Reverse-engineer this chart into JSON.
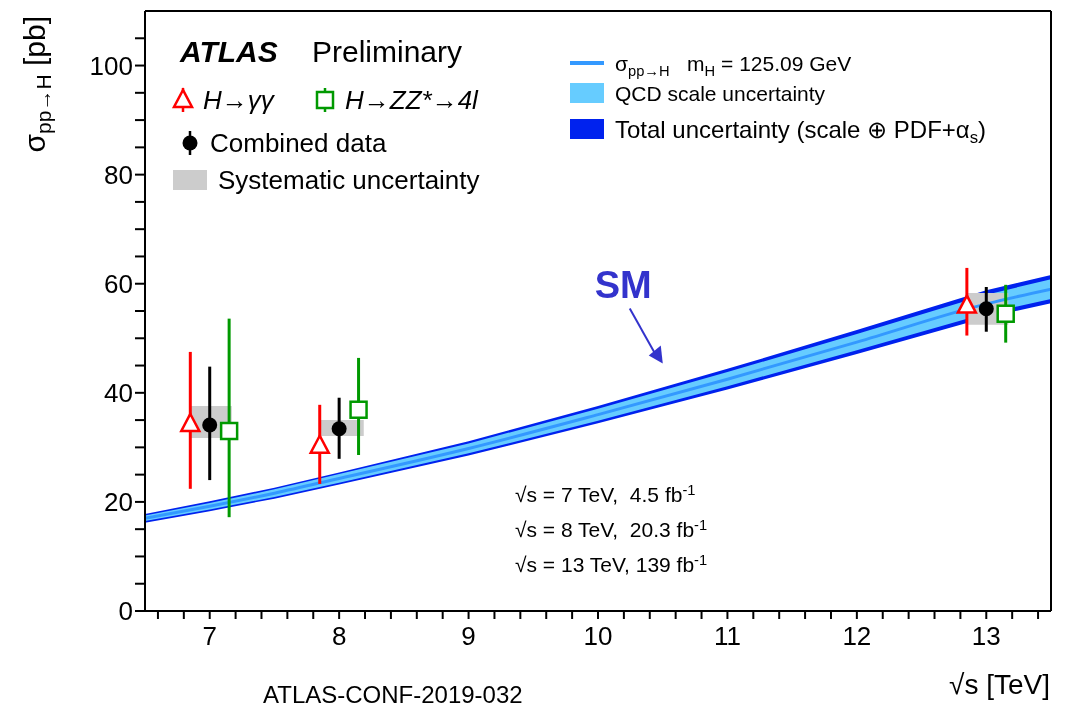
{
  "chart_data": {
    "type": "scatter",
    "xlabel": "√s [TeV]",
    "ylabel": "σ$_{pp→H}$ [pb]",
    "xlim": [
      6.5,
      13.5
    ],
    "ylim": [
      0,
      110
    ],
    "xticks": [
      {
        "value": 6.6,
        "label": null
      },
      {
        "value": 6.8,
        "label": null
      },
      7,
      {
        "value": 7.2,
        "label": null
      },
      {
        "value": 7.4,
        "label": null
      },
      {
        "value": 7.6,
        "label": null
      },
      {
        "value": 7.8,
        "label": null
      },
      8,
      {
        "value": 8.2,
        "label": null
      },
      {
        "value": 8.4,
        "label": null
      },
      {
        "value": 8.6,
        "label": null
      },
      {
        "value": 8.8,
        "label": null
      },
      9,
      {
        "value": 9.2,
        "label": null
      },
      {
        "value": 9.4,
        "label": null
      },
      {
        "value": 9.6,
        "label": null
      },
      {
        "value": 9.8,
        "label": null
      },
      10,
      {
        "value": 10.2,
        "label": null
      },
      {
        "value": 10.4,
        "label": null
      },
      {
        "value": 10.6,
        "label": null
      },
      {
        "value": 10.8,
        "label": null
      },
      11,
      {
        "value": 11.2,
        "label": null
      },
      {
        "value": 11.4,
        "label": null
      },
      {
        "value": 11.6,
        "label": null
      },
      {
        "value": 11.8,
        "label": null
      },
      12,
      {
        "value": 12.2,
        "label": null
      },
      {
        "value": 12.4,
        "label": null
      },
      {
        "value": 12.6,
        "label": null
      },
      {
        "value": 12.8,
        "label": null
      },
      13,
      {
        "value": 13.2,
        "label": null
      },
      {
        "value": 13.4,
        "label": null
      }
    ],
    "yticks": [
      0,
      {
        "value": 5,
        "label": null
      },
      {
        "value": 10,
        "label": null
      },
      {
        "value": 15,
        "label": null
      },
      20,
      {
        "value": 25,
        "label": null
      },
      {
        "value": 30,
        "label": null
      },
      {
        "value": 35,
        "label": null
      },
      40,
      {
        "value": 45,
        "label": null
      },
      {
        "value": 50,
        "label": null
      },
      {
        "value": 55,
        "label": null
      },
      60,
      {
        "value": 65,
        "label": null
      },
      {
        "value": 70,
        "label": null
      },
      {
        "value": 75,
        "label": null
      },
      80,
      {
        "value": 85,
        "label": null
      },
      {
        "value": 90,
        "label": null
      },
      {
        "value": 95,
        "label": null
      },
      100,
      {
        "value": 105,
        "label": null
      }
    ],
    "grid": false,
    "legend": "top",
    "series": [
      {
        "name": "H→γγ",
        "marker": "triangle",
        "color": "#ff0000",
        "x": [
          6.85,
          7.85,
          12.85
        ],
        "values": [
          34.3,
          30.3,
          56.0
        ],
        "errors": [
          [
            22.4,
            47.5
          ],
          [
            23.3,
            37.8
          ],
          [
            50.5,
            62.9
          ]
        ]
      },
      {
        "name": "H→ZZ*→4l",
        "marker": "square",
        "color": "#009900",
        "x": [
          7.15,
          8.15,
          13.15
        ],
        "values": [
          33.0,
          36.9,
          54.5
        ],
        "errors": [
          [
            17.2,
            53.6
          ],
          [
            28.6,
            46.4
          ],
          [
            49.2,
            59.8
          ]
        ]
      },
      {
        "name": "Combined data",
        "marker": "circle",
        "color": "#000000",
        "x": [
          7,
          8,
          13
        ],
        "values": [
          34.1,
          33.4,
          55.4
        ],
        "errors": [
          [
            24.0,
            44.8
          ],
          [
            27.9,
            39.1
          ],
          [
            51.2,
            59.4
          ]
        ]
      },
      {
        "name": "Systematic uncertainty",
        "type": "line",
        "color": "#cccccc",
        "x": [
          6.85,
          7.17,
          7.5,
          7.86,
          8.19,
          10,
          12.85,
          13.17
        ],
        "values": [
          null,
          null,
          null,
          null,
          null,
          null,
          null,
          null
        ],
        "lower": [
          31.7,
          31.7,
          null,
          32.1,
          32.1,
          null,
          52.5,
          52.5
        ],
        "upper": [
          37.6,
          37.6,
          null,
          35.0,
          35.0,
          null,
          58.3,
          58.3
        ]
      },
      {
        "name": "Total uncertainty (scale ⊕ PDF+α$_{s}$)",
        "type": "line",
        "color": "#0022ee",
        "x": [
          6.5,
          7,
          7.5,
          8,
          9,
          10,
          11,
          12,
          13,
          13.5
        ],
        "values": [
          null,
          null,
          null,
          null,
          null,
          null,
          null,
          null,
          null,
          null
        ],
        "lower": [
          16.2,
          18.3,
          20.6,
          23.2,
          28.5,
          34.4,
          40.6,
          47.1,
          53.8,
          56.4
        ],
        "upper": [
          17.8,
          20.1,
          22.6,
          25.4,
          31.1,
          37.6,
          44.4,
          51.5,
          58.8,
          61.6
        ]
      },
      {
        "name": "QCD scale uncertainty",
        "type": "line",
        "color": "#66ccff",
        "x": [
          6.5,
          7,
          7.5,
          8,
          9,
          10,
          11,
          12,
          13,
          13.5
        ],
        "values": [
          null,
          null,
          null,
          null,
          null,
          null,
          null,
          null,
          null,
          null
        ],
        "lower": [
          16.5,
          18.6,
          20.9,
          23.5,
          28.9,
          34.9,
          41.2,
          47.8,
          54.6,
          57.2
        ],
        "upper": [
          17.5,
          19.8,
          22.3,
          25.1,
          30.7,
          37.1,
          43.8,
          50.8,
          58.0,
          60.8
        ]
      },
      {
        "name": "σ$_{pp→H}$   m$_{H}$ = 125.09 GeV",
        "type": "line",
        "color": "#3399ff",
        "x": [
          6.5,
          7,
          7.5,
          8,
          9,
          10,
          11,
          12,
          13,
          13.5
        ],
        "values": [
          17.0,
          19.2,
          21.6,
          24.3,
          29.8,
          36.0,
          42.5,
          49.3,
          56.3,
          59.0
        ]
      }
    ],
    "annotations": [
      "ATLAS",
      "Preliminary",
      "√s = 7 TeV,  4.5 fb$^{-1}$",
      "√s = 8 TeV,  20.3 fb$^{-1}$",
      "√s = 13 TeV, 139 fb$^{-1}$",
      "ATLAS-CONF-2019-032",
      {
        "text": "SM",
        "x": 10.4,
        "y": 38.6
      }
    ]
  }
}
